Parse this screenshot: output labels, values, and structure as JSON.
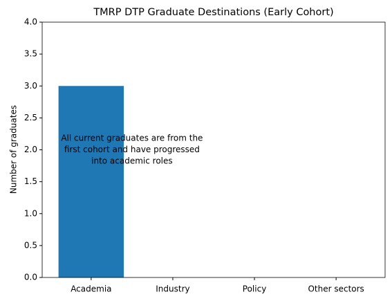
{
  "chart_data": {
    "type": "bar",
    "title": "TMRP DTP Graduate Destinations (Early Cohort)",
    "ylabel": "Number of graduates",
    "categories": [
      "Academia",
      "Industry",
      "Policy",
      "Other sectors"
    ],
    "values": [
      3,
      0,
      0,
      0
    ],
    "color": "#1f77b4",
    "ylim": [
      0,
      4
    ],
    "yticks": [
      {
        "value": 0,
        "label": "0.0"
      },
      {
        "value": 0.5,
        "label": "0.5"
      },
      {
        "value": 1,
        "label": "1.0"
      },
      {
        "value": 1.5,
        "label": "1.5"
      },
      {
        "value": 2,
        "label": "2.0"
      },
      {
        "value": 2.5,
        "label": "2.5"
      },
      {
        "value": 3,
        "label": "3.0"
      },
      {
        "value": 3.5,
        "label": "3.5"
      },
      {
        "value": 4,
        "label": "4.0"
      }
    ],
    "annotation": [
      "All current graduates are from the",
      "first cohort and have progressed",
      "into academic roles"
    ],
    "grid": false
  }
}
